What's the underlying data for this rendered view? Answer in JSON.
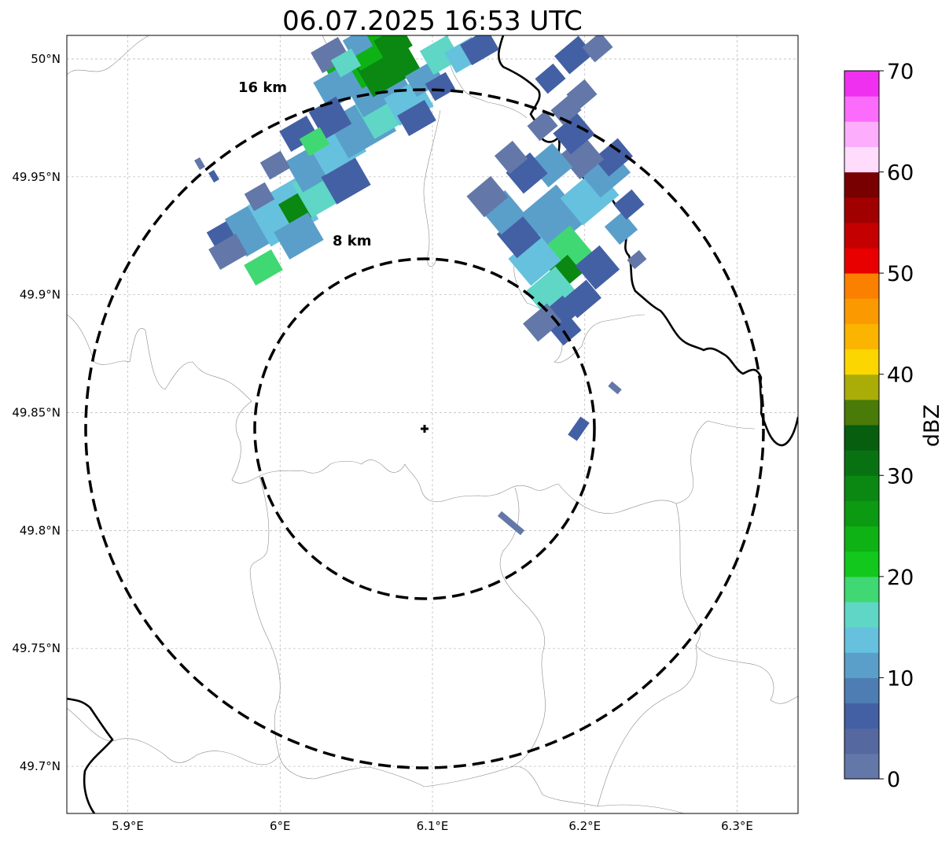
{
  "title": "06.07.2025 16:53 UTC",
  "map": {
    "lon_range": [
      5.86,
      6.34
    ],
    "lat_range": [
      49.68,
      50.01
    ],
    "lon_ticks": [
      {
        "value": 5.9,
        "label": "5.9°E"
      },
      {
        "value": 6.0,
        "label": "6°E"
      },
      {
        "value": 6.1,
        "label": "6.1°E"
      },
      {
        "value": 6.2,
        "label": "6.2°E"
      },
      {
        "value": 6.3,
        "label": "6.3°E"
      }
    ],
    "lat_ticks": [
      {
        "value": 50.0,
        "label": "50°N"
      },
      {
        "value": 49.95,
        "label": "49.95°N"
      },
      {
        "value": 49.9,
        "label": "49.9°N"
      },
      {
        "value": 49.85,
        "label": "49.85°N"
      },
      {
        "value": 49.8,
        "label": "49.8°N"
      },
      {
        "value": 49.75,
        "label": "49.75°N"
      },
      {
        "value": 49.7,
        "label": "49.7°N"
      }
    ],
    "grid": true,
    "radar": {
      "lon": 6.095,
      "lat": 49.843
    },
    "rings": [
      {
        "radius_km": 8,
        "label": "8 km"
      },
      {
        "radius_km": 16,
        "label": "16 km"
      }
    ]
  },
  "colorbar": {
    "label": "dBZ",
    "min": 0,
    "max": 70,
    "tick_labels": [
      "0",
      "10",
      "20",
      "30",
      "40",
      "50",
      "60",
      "70"
    ],
    "tick_values": [
      0,
      10,
      20,
      30,
      40,
      50,
      60,
      70
    ],
    "colors": [
      "#6378a8",
      "#5568a0",
      "#4460a4",
      "#4e7db3",
      "#5a9fca",
      "#66c1de",
      "#5fd6c6",
      "#40d873",
      "#12c81c",
      "#0eb214",
      "#0c9a12",
      "#0a8812",
      "#087212",
      "#065e0e",
      "#4a7a08",
      "#aaad08",
      "#fbd600",
      "#fbb400",
      "#fb9a00",
      "#fb8000",
      "#e80000",
      "#c40000",
      "#a00000",
      "#780000",
      "#ffdcfc",
      "#fcaefc",
      "#fc6cfc",
      "#f030f0"
    ]
  },
  "echoes": {
    "color_key_dbz": {
      "a": 2,
      "b": 6,
      "c": 10,
      "d": 13,
      "e": 17,
      "f": 19,
      "g": 23,
      "h": 28
    }
  }
}
